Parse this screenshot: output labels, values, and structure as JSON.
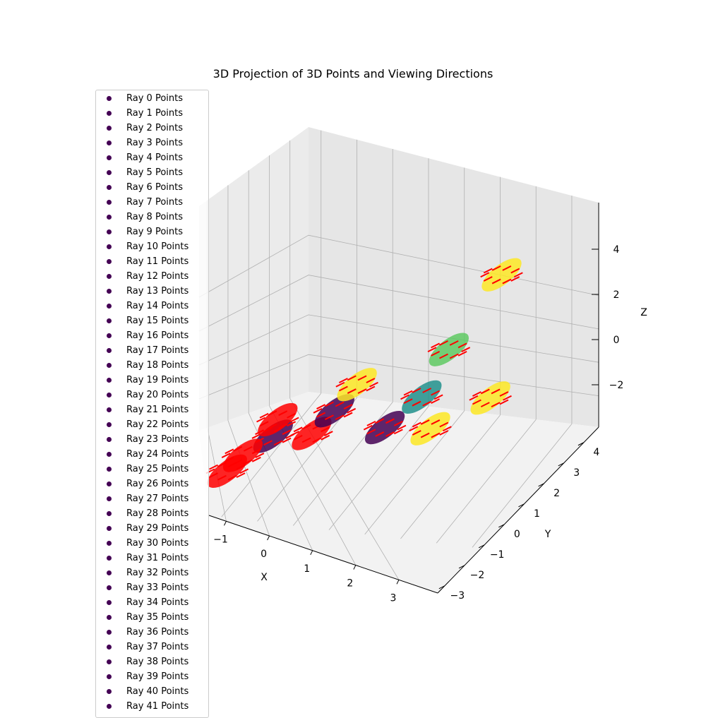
{
  "chart_data": {
    "type": "scatter",
    "projection": "3d",
    "title": "3D Projection of 3D Points and Viewing Directions",
    "xlabel": "X",
    "ylabel": "Y",
    "zlabel": "Z",
    "xlim": [
      -1.6,
      3.6
    ],
    "ylim": [
      -3,
      4.6
    ],
    "zlim": [
      -3.8,
      5.6
    ],
    "x_ticks": [
      "−1",
      "0",
      "1",
      "2",
      "3"
    ],
    "y_ticks": [
      "−3",
      "−2",
      "−1",
      "0",
      "1",
      "2",
      "3",
      "4"
    ],
    "z_ticks": [
      "−2",
      "0",
      "2",
      "4"
    ],
    "grid": true,
    "legend_position": "upper-left",
    "colormap": "viridis",
    "direction_color": "#ff0000",
    "legend_marker_color": "#440154",
    "series": [
      {
        "name": "Ray 0 Points"
      },
      {
        "name": "Ray 1 Points"
      },
      {
        "name": "Ray 2 Points"
      },
      {
        "name": "Ray 3 Points"
      },
      {
        "name": "Ray 4 Points"
      },
      {
        "name": "Ray 5 Points"
      },
      {
        "name": "Ray 6 Points"
      },
      {
        "name": "Ray 7 Points"
      },
      {
        "name": "Ray 8 Points"
      },
      {
        "name": "Ray 9 Points"
      },
      {
        "name": "Ray 10 Points"
      },
      {
        "name": "Ray 11 Points"
      },
      {
        "name": "Ray 12 Points"
      },
      {
        "name": "Ray 13 Points"
      },
      {
        "name": "Ray 14 Points"
      },
      {
        "name": "Ray 15 Points"
      },
      {
        "name": "Ray 16 Points"
      },
      {
        "name": "Ray 17 Points"
      },
      {
        "name": "Ray 18 Points"
      },
      {
        "name": "Ray 19 Points"
      },
      {
        "name": "Ray 20 Points"
      },
      {
        "name": "Ray 21 Points"
      },
      {
        "name": "Ray 22 Points"
      },
      {
        "name": "Ray 23 Points"
      },
      {
        "name": "Ray 24 Points"
      },
      {
        "name": "Ray 25 Points"
      },
      {
        "name": "Ray 26 Points"
      },
      {
        "name": "Ray 27 Points"
      },
      {
        "name": "Ray 28 Points"
      },
      {
        "name": "Ray 29 Points"
      },
      {
        "name": "Ray 30 Points"
      },
      {
        "name": "Ray 31 Points"
      },
      {
        "name": "Ray 32 Points"
      },
      {
        "name": "Ray 33 Points"
      },
      {
        "name": "Ray 34 Points"
      },
      {
        "name": "Ray 35 Points"
      },
      {
        "name": "Ray 36 Points"
      },
      {
        "name": "Ray 37 Points"
      },
      {
        "name": "Ray 38 Points"
      },
      {
        "name": "Ray 39 Points"
      },
      {
        "name": "Ray 40 Points"
      },
      {
        "name": "Ray 41 Points"
      }
    ],
    "point_clusters": [
      {
        "x": -1.2,
        "y": -1.6,
        "z": -2.4,
        "color": "#ff0000"
      },
      {
        "x": -0.3,
        "y": -1.4,
        "z": -0.6,
        "color": "#440154"
      },
      {
        "x": -0.2,
        "y": -1.5,
        "z": 0.2,
        "color": "#ff0000"
      },
      {
        "x": -0.9,
        "y": -1.2,
        "z": -1.8,
        "color": "#ff0000"
      },
      {
        "x": 0.4,
        "y": -1.0,
        "z": -0.4,
        "color": "#ff0000"
      },
      {
        "x": 0.8,
        "y": -0.8,
        "z": 0.6,
        "color": "#440154"
      },
      {
        "x": 1.2,
        "y": -0.7,
        "z": 1.8,
        "color": "#fde725"
      },
      {
        "x": 1.6,
        "y": -0.2,
        "z": -0.2,
        "color": "#440154"
      },
      {
        "x": 2.1,
        "y": 0.4,
        "z": 0.8,
        "color": "#21918c"
      },
      {
        "x": 2.4,
        "y": 1.0,
        "z": 2.4,
        "color": "#5ec962"
      },
      {
        "x": 2.3,
        "y": 0.2,
        "z": -0.3,
        "color": "#fde725"
      },
      {
        "x": 2.9,
        "y": 1.6,
        "z": 0.0,
        "color": "#fde725"
      },
      {
        "x": 2.6,
        "y": 3.4,
        "z": 3.6,
        "color": "#fde725"
      }
    ]
  }
}
